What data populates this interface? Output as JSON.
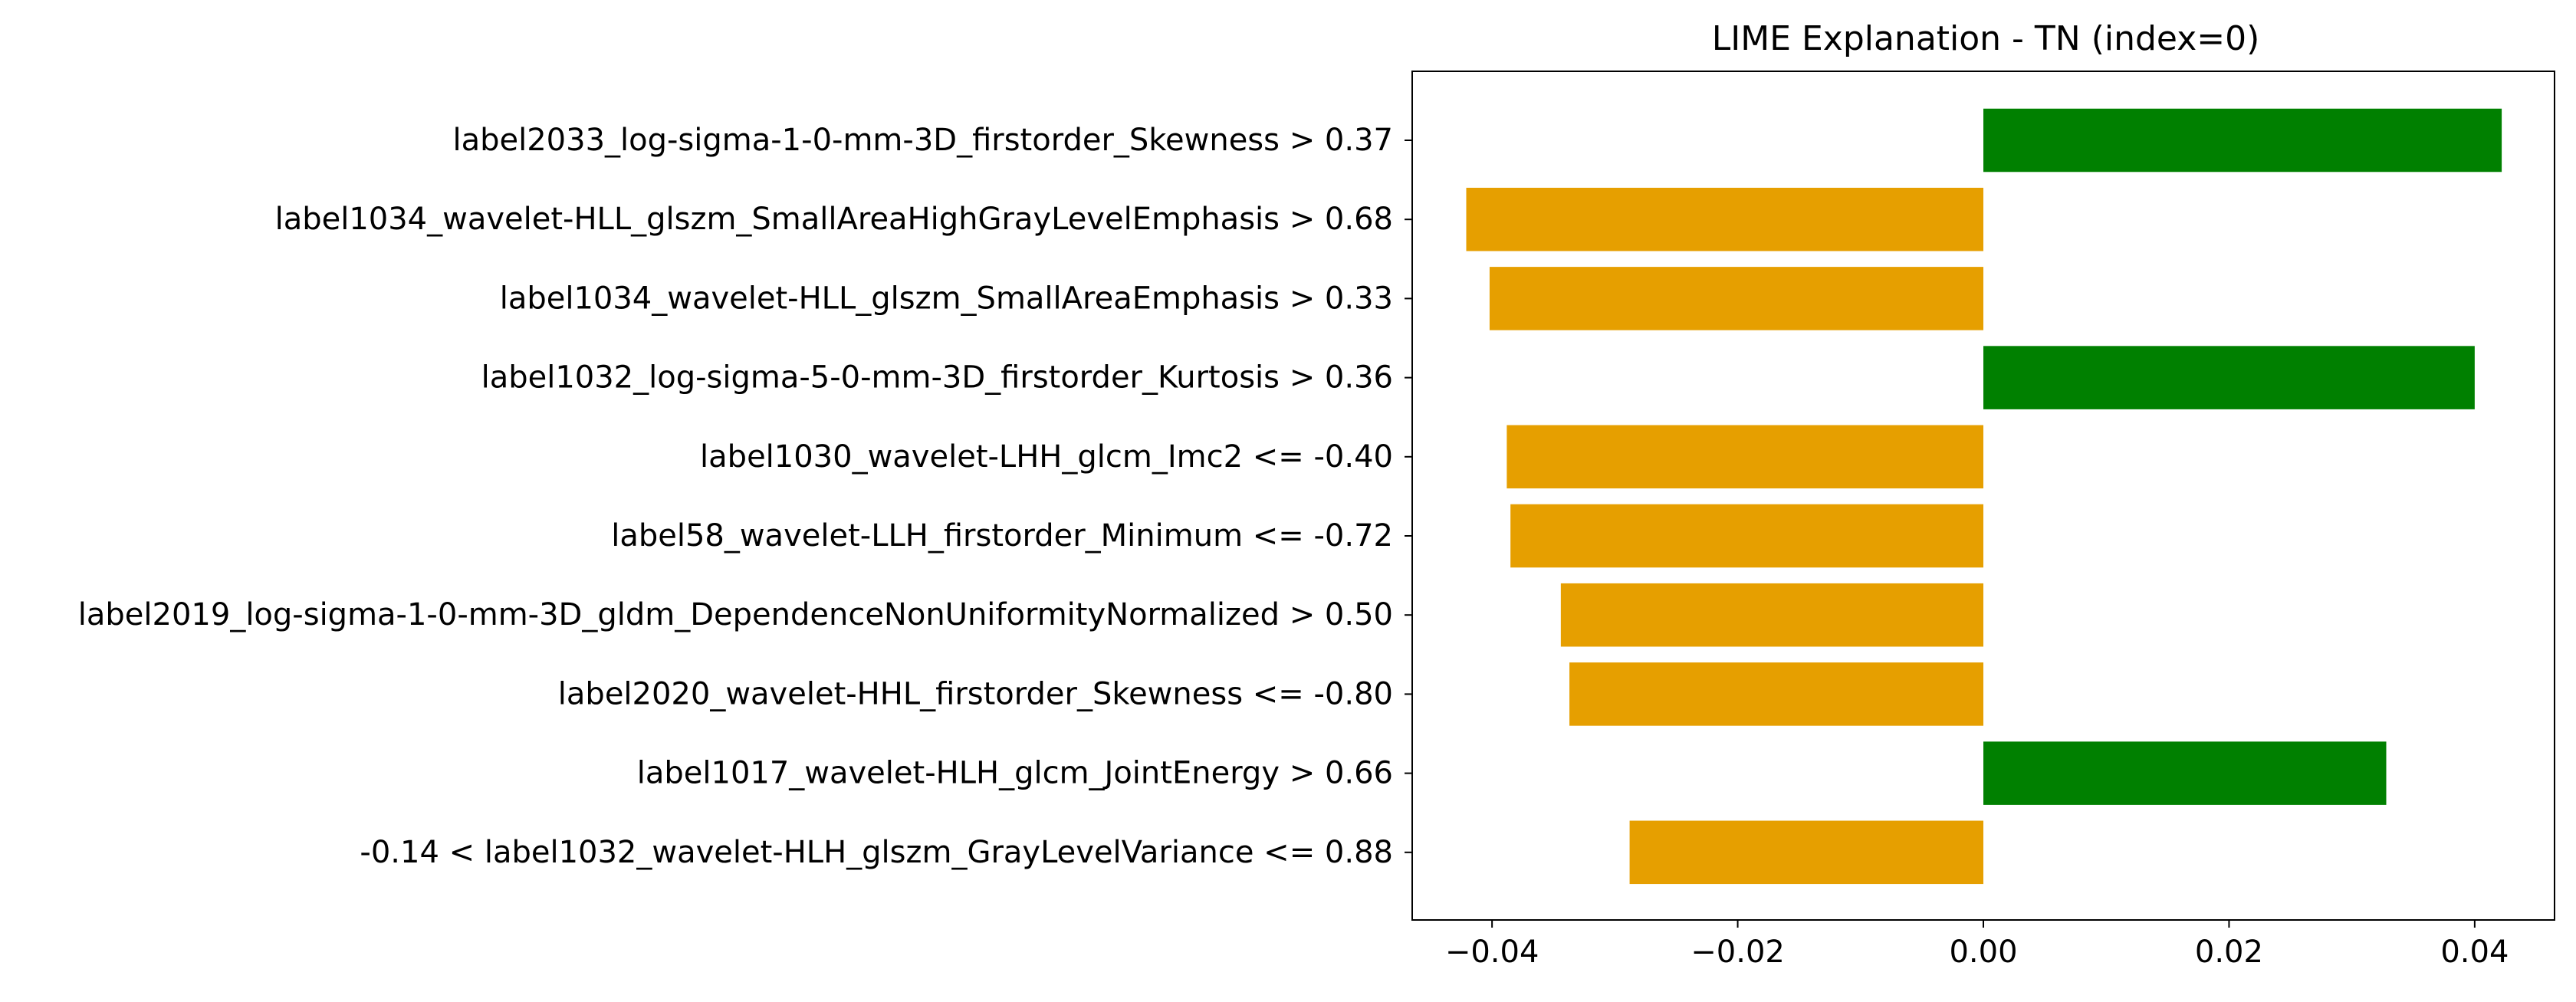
{
  "chart_data": {
    "type": "bar",
    "orientation": "horizontal",
    "title": "LIME Explanation - TN (index=0)",
    "xlabel": "",
    "ylabel": "",
    "categories": [
      "label2033_log-sigma-1-0-mm-3D_firstorder_Skewness > 0.37",
      "label1034_wavelet-HLL_glszm_SmallAreaHighGrayLevelEmphasis > 0.68",
      "label1034_wavelet-HLL_glszm_SmallAreaEmphasis > 0.33",
      "label1032_log-sigma-5-0-mm-3D_firstorder_Kurtosis > 0.36",
      "label1030_wavelet-LHH_glcm_Imc2 <= -0.40",
      "label58_wavelet-LLH_firstorder_Minimum <= -0.72",
      "label2019_log-sigma-1-0-mm-3D_gldm_DependenceNonUniformityNormalized > 0.50",
      "label2020_wavelet-HHL_firstorder_Skewness <= -0.80",
      "label1017_wavelet-HLH_glcm_JointEnergy > 0.66",
      "-0.14 < label1032_wavelet-HLH_glszm_GrayLevelVariance <= 0.88"
    ],
    "values": [
      0.0422,
      -0.0421,
      -0.0402,
      0.04,
      -0.0388,
      -0.0385,
      -0.0344,
      -0.0337,
      0.0328,
      -0.0288
    ],
    "xlim": [
      -0.0465,
      0.0465
    ],
    "xticks": [
      -0.04,
      -0.02,
      0.0,
      0.02,
      0.04
    ],
    "xtick_labels": [
      "−0.04",
      "−0.02",
      "0.00",
      "0.02",
      "0.04"
    ],
    "colors": {
      "positive": "#008000",
      "negative": "#E69F00"
    },
    "grid": false
  }
}
